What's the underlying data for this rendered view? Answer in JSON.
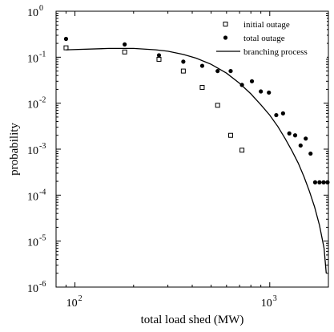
{
  "chart_data": {
    "type": "scatter",
    "xlabel": "total load shed (MW)",
    "ylabel": "probability",
    "xscale": "log",
    "yscale": "log",
    "xlim": [
      80,
      2000
    ],
    "ylim": [
      1e-06,
      1
    ],
    "x_ticks": [
      {
        "value": 100,
        "base": "10",
        "exp": "2"
      },
      {
        "value": 1000,
        "base": "10",
        "exp": "3"
      }
    ],
    "y_ticks": [
      {
        "value": 1,
        "base": "10",
        "exp": "0"
      },
      {
        "value": 0.1,
        "base": "10",
        "exp": "-1"
      },
      {
        "value": 0.01,
        "base": "10",
        "exp": "-2"
      },
      {
        "value": 0.001,
        "base": "10",
        "exp": "-3"
      },
      {
        "value": 0.0001,
        "base": "10",
        "exp": "-4"
      },
      {
        "value": 1e-05,
        "base": "10",
        "exp": "-5"
      },
      {
        "value": 1e-06,
        "base": "10",
        "exp": "-6"
      }
    ],
    "legend": {
      "placement": "top-right",
      "entries": [
        "initial outage",
        "total outage",
        "branching process"
      ]
    },
    "series": [
      {
        "name": "initial outage",
        "marker": "open-square",
        "x": [
          90,
          180,
          270,
          360,
          450,
          540,
          630,
          720
        ],
        "y": [
          0.16,
          0.13,
          0.09,
          0.05,
          0.022,
          0.009,
          0.002,
          0.00095
        ]
      },
      {
        "name": "total outage",
        "marker": "filled-circle",
        "x": [
          90,
          180,
          270,
          360,
          450,
          540,
          630,
          720,
          810,
          900,
          990,
          1080,
          1170,
          1260,
          1350,
          1440,
          1530,
          1620,
          1710,
          1800,
          1890,
          1980
        ],
        "y": [
          0.25,
          0.19,
          0.11,
          0.08,
          0.065,
          0.05,
          0.05,
          0.025,
          0.03,
          0.018,
          0.017,
          0.0055,
          0.006,
          0.0022,
          0.002,
          0.0012,
          0.0017,
          0.0008,
          0.00019,
          0.00019,
          0.00019,
          0.00019
        ]
      },
      {
        "name": "branching process",
        "marker": "line",
        "x": [
          90,
          150,
          200,
          260,
          300,
          360,
          420,
          500,
          600,
          700,
          800,
          900,
          1000,
          1100,
          1200,
          1300,
          1400,
          1500,
          1600,
          1700,
          1800,
          1900,
          1950
        ],
        "y": [
          0.145,
          0.155,
          0.155,
          0.145,
          0.135,
          0.115,
          0.095,
          0.07,
          0.045,
          0.027,
          0.016,
          0.0092,
          0.0055,
          0.0031,
          0.0017,
          0.00092,
          0.0005,
          0.00025,
          0.00012,
          5.5e-05,
          2.2e-05,
          7e-06,
          2e-06
        ]
      }
    ]
  }
}
